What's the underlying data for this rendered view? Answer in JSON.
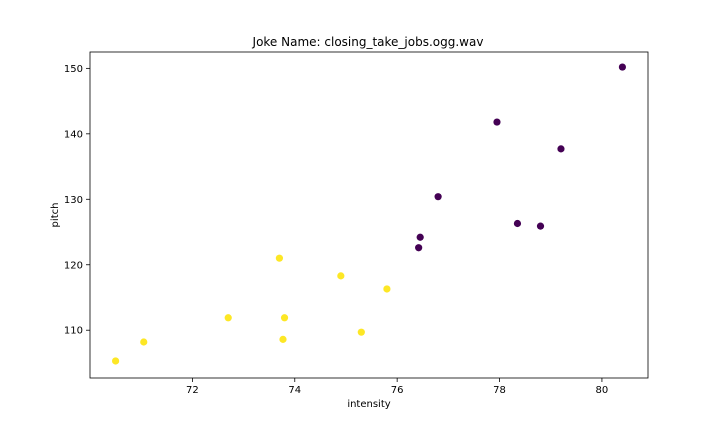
{
  "chart_data": {
    "type": "scatter",
    "title": "Joke Name: closing_take_jobs.ogg.wav",
    "xlabel": "intensity",
    "ylabel": "pitch",
    "xlim": [
      70.0,
      80.9
    ],
    "ylim": [
      102.7,
      152.5
    ],
    "xticks": [
      72,
      74,
      76,
      78,
      80
    ],
    "yticks": [
      110,
      120,
      130,
      140,
      150
    ],
    "grid": false,
    "colors": {
      "group_a": "#440154",
      "group_b": "#fde725"
    },
    "points": [
      {
        "x": 80.4,
        "y": 150.2,
        "group": "group_a"
      },
      {
        "x": 77.95,
        "y": 141.8,
        "group": "group_a"
      },
      {
        "x": 79.2,
        "y": 137.7,
        "group": "group_a"
      },
      {
        "x": 76.8,
        "y": 130.4,
        "group": "group_a"
      },
      {
        "x": 78.35,
        "y": 126.3,
        "group": "group_a"
      },
      {
        "x": 78.8,
        "y": 125.9,
        "group": "group_a"
      },
      {
        "x": 76.45,
        "y": 124.2,
        "group": "group_a"
      },
      {
        "x": 76.42,
        "y": 122.6,
        "group": "group_a"
      },
      {
        "x": 73.7,
        "y": 121.0,
        "group": "group_b"
      },
      {
        "x": 74.9,
        "y": 118.3,
        "group": "group_b"
      },
      {
        "x": 75.8,
        "y": 116.3,
        "group": "group_b"
      },
      {
        "x": 72.7,
        "y": 111.9,
        "group": "group_b"
      },
      {
        "x": 73.8,
        "y": 111.9,
        "group": "group_b"
      },
      {
        "x": 75.3,
        "y": 109.7,
        "group": "group_b"
      },
      {
        "x": 73.77,
        "y": 108.6,
        "group": "group_b"
      },
      {
        "x": 71.05,
        "y": 108.2,
        "group": "group_b"
      },
      {
        "x": 70.5,
        "y": 105.3,
        "group": "group_b"
      }
    ]
  }
}
